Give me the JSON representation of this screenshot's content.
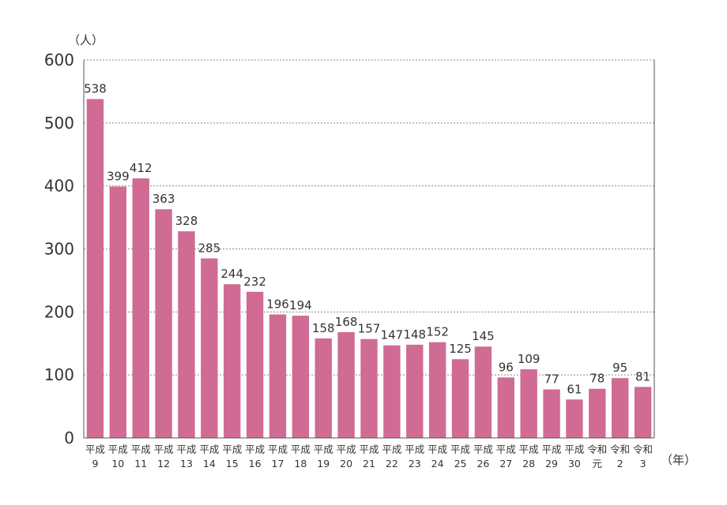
{
  "chart_data": {
    "type": "bar",
    "y_unit": "（人）",
    "x_unit": "（年）",
    "ylim": [
      0,
      600
    ],
    "yticks": [
      0,
      100,
      200,
      300,
      400,
      500,
      600
    ],
    "grid": true,
    "bar_color": "#d06b93",
    "categories": [
      {
        "line1": "平成",
        "line2": "9"
      },
      {
        "line1": "平成",
        "line2": "10"
      },
      {
        "line1": "平成",
        "line2": "11"
      },
      {
        "line1": "平成",
        "line2": "12"
      },
      {
        "line1": "平成",
        "line2": "13"
      },
      {
        "line1": "平成",
        "line2": "14"
      },
      {
        "line1": "平成",
        "line2": "15"
      },
      {
        "line1": "平成",
        "line2": "16"
      },
      {
        "line1": "平成",
        "line2": "17"
      },
      {
        "line1": "平成",
        "line2": "18"
      },
      {
        "line1": "平成",
        "line2": "19"
      },
      {
        "line1": "平成",
        "line2": "20"
      },
      {
        "line1": "平成",
        "line2": "21"
      },
      {
        "line1": "平成",
        "line2": "22"
      },
      {
        "line1": "平成",
        "line2": "23"
      },
      {
        "line1": "平成",
        "line2": "24"
      },
      {
        "line1": "平成",
        "line2": "25"
      },
      {
        "line1": "平成",
        "line2": "26"
      },
      {
        "line1": "平成",
        "line2": "27"
      },
      {
        "line1": "平成",
        "line2": "28"
      },
      {
        "line1": "平成",
        "line2": "29"
      },
      {
        "line1": "平成",
        "line2": "30"
      },
      {
        "line1": "令和",
        "line2": "元"
      },
      {
        "line1": "令和",
        "line2": "2"
      },
      {
        "line1": "令和",
        "line2": "3"
      }
    ],
    "values": [
      538,
      399,
      412,
      363,
      328,
      285,
      244,
      232,
      196,
      194,
      158,
      168,
      157,
      147,
      148,
      152,
      125,
      145,
      96,
      109,
      77,
      61,
      78,
      95,
      81
    ]
  }
}
